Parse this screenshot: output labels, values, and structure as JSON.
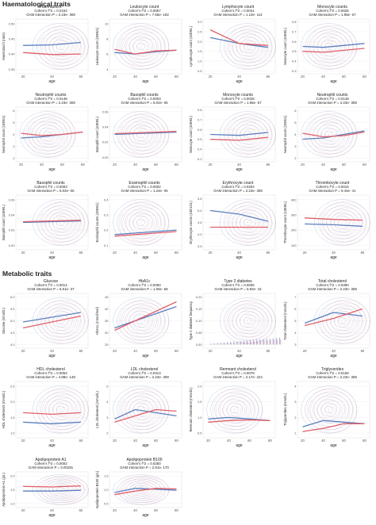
{
  "sections": {
    "haematological": "Haematological traits",
    "metabolic": "Metabolic traits"
  },
  "colors": {
    "blue": "#5b7fbf",
    "red": "#e0606a",
    "contour_blue": "#8aa2d4",
    "contour_red": "#e8a0aa",
    "axis": "#444444"
  },
  "chart_data": [
    {
      "type": "line",
      "title": "Haematocrit",
      "stat1": "Cohen's f^2 = 0.0163",
      "stat2": "GAM interaction P = 2.23e- 308",
      "ylabel": "Haematocrit (ratio)",
      "xlabel": "age",
      "xticks": [
        "20",
        "40",
        "60"
      ],
      "yticks": [
        "0.35",
        "0.40",
        "0.45",
        "0.50"
      ],
      "x": [
        20,
        40,
        60
      ],
      "series": [
        {
          "name": "",
          "color": "blue",
          "values": [
            0.428,
            0.43,
            0.438
          ]
        },
        {
          "name": "",
          "color": "red",
          "values": [
            0.405,
            0.398,
            0.4
          ]
        }
      ]
    },
    {
      "type": "line",
      "title": "Leukocyte count",
      "stat1": "Cohen's f^2 = 0.0067",
      "stat2": "GAM interaction P = 7.55e- 192",
      "ylabel": "Leukocyte count (10E9/L)",
      "xlabel": "age",
      "xticks": [
        "20",
        "40",
        "60",
        "80"
      ],
      "yticks": [
        "4",
        "6",
        "8",
        "10"
      ],
      "x": [
        20,
        40,
        60,
        80
      ],
      "series": [
        {
          "name": "",
          "color": "blue",
          "values": [
            6.2,
            6.0,
            6.3,
            6.5
          ]
        },
        {
          "name": "",
          "color": "red",
          "values": [
            6.6,
            6.0,
            6.4,
            6.5
          ]
        }
      ]
    },
    {
      "type": "line",
      "title": "Lymphocyte count",
      "stat1": "Cohen's f^2 = 0.0041",
      "stat2": "GAM interaction P = 1.13e- 114",
      "ylabel": "Lymphocyte count (10E9/L)",
      "xlabel": "age",
      "xticks": [
        "20",
        "40",
        "60"
      ],
      "yticks": [
        "0.5",
        "1.0",
        "1.5",
        "2.0",
        "2.5",
        "3.0"
      ],
      "x": [
        20,
        40,
        60
      ],
      "series": [
        {
          "name": "",
          "color": "blue",
          "values": [
            2.2,
            1.9,
            1.7
          ]
        },
        {
          "name": "",
          "color": "red",
          "values": [
            2.6,
            1.9,
            1.8
          ]
        }
      ]
    },
    {
      "type": "line",
      "title": "Monocyte counts",
      "stat1": "Cohen's f^2 = 0.0025",
      "stat2": "GAM interaction P = 1.95e- 67",
      "ylabel": "Monocyte count (10E9/L)",
      "xlabel": "age",
      "xticks": [
        "20",
        "40",
        "60",
        "80"
      ],
      "yticks": [
        "0.3",
        "0.4",
        "0.5",
        "0.6",
        "0.7",
        "0.8"
      ],
      "x": [
        20,
        40,
        60,
        80
      ],
      "series": [
        {
          "name": "",
          "color": "blue",
          "values": [
            0.55,
            0.54,
            0.56,
            0.58
          ]
        },
        {
          "name": "",
          "color": "red",
          "values": [
            0.5,
            0.49,
            0.51,
            0.53
          ]
        }
      ]
    },
    {
      "type": "line",
      "title": "Neutrophil counts",
      "stat1": "Cohen's f^2 = 0.0148",
      "stat2": "GAM interaction P = 2.23e- 308",
      "ylabel": "Neutrophil count (10E9/L)",
      "xlabel": "age",
      "xticks": [
        "20",
        "40",
        "60",
        "80"
      ],
      "yticks": [
        "2",
        "3",
        "4",
        "5",
        "6"
      ],
      "x": [
        20,
        40,
        60,
        80
      ],
      "series": [
        {
          "name": "",
          "color": "blue",
          "values": [
            3.7,
            3.8,
            4.0,
            4.2
          ]
        },
        {
          "name": "",
          "color": "red",
          "values": [
            4.1,
            3.9,
            4.0,
            4.2
          ]
        }
      ]
    },
    {
      "type": "line",
      "title": "Basophil counts",
      "stat1": "Cohen's f^2 = 0.0003",
      "stat2": "GAM interaction P = 6.02e- 06",
      "ylabel": "Basophil count (10E9/L)",
      "xlabel": "age",
      "xticks": [
        "20",
        "40",
        "60",
        "80"
      ],
      "yticks": [
        "0.00",
        "0.02",
        "0.04",
        "0.06"
      ],
      "x": [
        20,
        40,
        60,
        80
      ],
      "series": [
        {
          "name": "",
          "color": "blue",
          "values": [
            0.03,
            0.031,
            0.032,
            0.033
          ]
        },
        {
          "name": "",
          "color": "red",
          "values": [
            0.031,
            0.032,
            0.033,
            0.034
          ]
        }
      ]
    },
    {
      "type": "line",
      "title": "Monocyte counts",
      "stat1": "Cohen's f^2 = 0.0025",
      "stat2": "GAM interaction P = 1.95e- 67",
      "ylabel": "Monocyte count (10E9/L)",
      "xlabel": "age",
      "xticks": [
        "20",
        "40",
        "60"
      ],
      "yticks": [
        "0.3",
        "0.4",
        "0.5",
        "0.6",
        "0.7",
        "0.8"
      ],
      "x": [
        20,
        40,
        60
      ],
      "series": [
        {
          "name": "",
          "color": "blue",
          "values": [
            0.55,
            0.54,
            0.57
          ]
        },
        {
          "name": "",
          "color": "red",
          "values": [
            0.5,
            0.49,
            0.52
          ]
        }
      ]
    },
    {
      "type": "line",
      "title": "Neutrophil counts",
      "stat1": "Cohen's f^2 = 0.0148",
      "stat2": "GAM interaction P = 2.23e- 308",
      "ylabel": "Neutrophil count (10E9/L)",
      "xlabel": "age",
      "xticks": [
        "20",
        "40",
        "60",
        "80"
      ],
      "yticks": [
        "2",
        "3",
        "4",
        "5",
        "6"
      ],
      "x": [
        20,
        40,
        60,
        80
      ],
      "series": [
        {
          "name": "",
          "color": "blue",
          "values": [
            3.6,
            3.7,
            4.0,
            4.3
          ]
        },
        {
          "name": "",
          "color": "red",
          "values": [
            4.1,
            3.8,
            3.9,
            4.2
          ]
        }
      ]
    },
    {
      "type": "line",
      "title": "Basophil counts",
      "stat1": "Cohen's f^2 = 0.0003",
      "stat2": "GAM interaction P = 6.02e- 06",
      "ylabel": "Basophil count (10E9/L)",
      "xlabel": "age",
      "xticks": [
        "20",
        "40",
        "60"
      ],
      "yticks": [
        "0.00",
        "0.02",
        "0.04",
        "0.06"
      ],
      "x": [
        20,
        40,
        60
      ],
      "series": [
        {
          "name": "",
          "color": "blue",
          "values": [
            0.03,
            0.031,
            0.032
          ]
        },
        {
          "name": "",
          "color": "red",
          "values": [
            0.031,
            0.032,
            0.033
          ]
        }
      ]
    },
    {
      "type": "line",
      "title": "Eosinophil counts",
      "stat1": "Cohen's f^2 = 0.0002",
      "stat2": "GAM interaction P = 1.24e- 05",
      "ylabel": "Eosinophil counts (10E9/L)",
      "xlabel": "age",
      "xticks": [
        "20",
        "40",
        "60",
        "80"
      ],
      "yticks": [
        "0.1",
        "0.2",
        "0.3",
        "0.4"
      ],
      "x": [
        20,
        40,
        60,
        80
      ],
      "series": [
        {
          "name": "",
          "color": "blue",
          "values": [
            0.17,
            0.18,
            0.19,
            0.2
          ]
        },
        {
          "name": "",
          "color": "red",
          "values": [
            0.16,
            0.17,
            0.18,
            0.19
          ]
        }
      ]
    },
    {
      "type": "line",
      "title": "Erythrocyte count",
      "stat1": "Cohen's f^2 = 0.0204",
      "stat2": "GAM interaction P = 2.23e- 308",
      "ylabel": "Erythrocyte counts (10E12/L)",
      "xlabel": "age",
      "xticks": [
        "20",
        "40",
        "60"
      ],
      "yticks": [
        "3.5",
        "4.0",
        "4.5",
        "5.0",
        "5.5"
      ],
      "x": [
        20,
        40,
        60
      ],
      "series": [
        {
          "name": "",
          "color": "blue",
          "values": [
            5.0,
            4.85,
            4.55
          ]
        },
        {
          "name": "",
          "color": "red",
          "values": [
            4.3,
            4.3,
            4.3
          ]
        }
      ]
    },
    {
      "type": "line",
      "title": "Thrombocyte count",
      "stat1": "Cohen's f^2 = 0.0016",
      "stat2": "GAM interaction P = 9.44e- 41",
      "ylabel": "Thrombocyte count (10E9/L)",
      "xlabel": "age",
      "xticks": [
        "20",
        "40",
        "60"
      ],
      "yticks": [
        "100",
        "200",
        "300",
        "400"
      ],
      "x": [
        20,
        40,
        60
      ],
      "series": [
        {
          "name": "",
          "color": "blue",
          "values": [
            240,
            235,
            225
          ]
        },
        {
          "name": "",
          "color": "red",
          "values": [
            280,
            270,
            265
          ]
        }
      ]
    },
    {
      "type": "line",
      "title": "Glucose",
      "stat1": "Cohen's f^2 = 0.0014",
      "stat2": "GAM interaction P = 6.51e- 37",
      "ylabel": "Glucose (mmol/L)",
      "xlabel": "age",
      "xticks": [
        "20",
        "40",
        "60"
      ],
      "yticks": [
        "4.0",
        "4.5",
        "5.0",
        "5.5",
        "6.0"
      ],
      "x": [
        20,
        40,
        60
      ],
      "series": [
        {
          "name": "",
          "color": "blue",
          "values": [
            4.95,
            5.15,
            5.35
          ]
        },
        {
          "name": "",
          "color": "red",
          "values": [
            4.7,
            4.95,
            5.2
          ]
        }
      ]
    },
    {
      "type": "line",
      "title": "HbA1c",
      "stat1": "Cohen's f^2 = 0.0050",
      "stat2": "GAM interaction P = 1.06e- 68",
      "ylabel": "HbA1c (mmol/mol)",
      "xlabel": "age",
      "xticks": [
        "20",
        "40",
        "60",
        "80"
      ],
      "yticks": [
        "25",
        "30",
        "35",
        "40",
        "45"
      ],
      "x": [
        20,
        40,
        60,
        80
      ],
      "series": [
        {
          "name": "",
          "color": "blue",
          "values": [
            32,
            35,
            38,
            41
          ]
        },
        {
          "name": "",
          "color": "red",
          "values": [
            31,
            35,
            39,
            43
          ]
        }
      ]
    },
    {
      "type": "bar",
      "title": "Type 2 diabetes",
      "stat1": "Cohen's f^2 = 0.0006",
      "stat2": "GAM interaction P = 6.92e- 15",
      "ylabel": "Type 2 diabetes frequency",
      "xlabel": "age",
      "xticks": [
        "20",
        "40",
        "60"
      ],
      "yticks": [
        "0.00",
        "0.05",
        "0.10",
        "0.15",
        "0.20"
      ],
      "x": [
        20,
        40,
        60
      ],
      "series": [
        {
          "name": "",
          "color": "blue",
          "values": [
            0.004,
            0.012,
            0.03
          ]
        },
        {
          "name": "",
          "color": "red",
          "values": [
            0.003,
            0.01,
            0.022
          ]
        }
      ]
    },
    {
      "type": "line",
      "title": "Total cholesterol",
      "stat1": "Cohen's f^2 = 0.0390",
      "stat2": "GAM interaction P = 2.23e- 308",
      "ylabel": "Total cholesterol (mmol/L)",
      "xlabel": "age",
      "xticks": [
        "20",
        "40",
        "60"
      ],
      "yticks": [
        "3",
        "4",
        "5",
        "6",
        "7"
      ],
      "x": [
        20,
        40,
        60
      ],
      "series": [
        {
          "name": "",
          "color": "blue",
          "values": [
            4.8,
            5.7,
            5.4
          ]
        },
        {
          "name": "",
          "color": "red",
          "values": [
            4.6,
            5.2,
            6.0
          ]
        }
      ]
    },
    {
      "type": "line",
      "title": "HDL cholesterol",
      "stat1": "Cohen's f^2 = 0.0053",
      "stat2": "GAM interaction P = 4.88e- 148",
      "ylabel": "HDL cholesterol (mmol/L)",
      "xlabel": "age",
      "xticks": [
        "20",
        "40",
        "60"
      ],
      "yticks": [
        "1.0",
        "1.5",
        "2.0",
        "2.5"
      ],
      "x": [
        20,
        40,
        60
      ],
      "series": [
        {
          "name": "",
          "color": "blue",
          "values": [
            1.35,
            1.3,
            1.35
          ]
        },
        {
          "name": "",
          "color": "red",
          "values": [
            1.65,
            1.6,
            1.65
          ]
        }
      ]
    },
    {
      "type": "line",
      "title": "LDL cholesterol",
      "stat1": "Cohen's f^2 = 0.0313",
      "stat2": "GAM interaction P = 2.23e- 308",
      "ylabel": "LDL cholesterol (mmol/L)",
      "xlabel": "age",
      "xticks": [
        "20",
        "40",
        "60",
        "80"
      ],
      "yticks": [
        "2",
        "3",
        "4",
        "5"
      ],
      "x": [
        20,
        40,
        60,
        80
      ],
      "series": [
        {
          "name": "",
          "color": "blue",
          "values": [
            2.9,
            3.5,
            3.3,
            3.1
          ]
        },
        {
          "name": "",
          "color": "red",
          "values": [
            2.7,
            3.1,
            3.5,
            3.4
          ]
        }
      ]
    },
    {
      "type": "line",
      "title": "Remnant cholesterol",
      "stat1": "Cohen's f^2 = 0.0078",
      "stat2": "GAM interaction P = 2.17e- 224",
      "ylabel": "Remnant cholesterol (mmol/L)",
      "xlabel": "age",
      "xticks": [
        "20",
        "40",
        "60",
        "80"
      ],
      "yticks": [
        "0.5",
        "1.0",
        "1.5",
        "2.0"
      ],
      "x": [
        20,
        40,
        60,
        80
      ],
      "series": [
        {
          "name": "",
          "color": "blue",
          "values": [
            0.95,
            1.0,
            0.95,
            0.9
          ]
        },
        {
          "name": "",
          "color": "red",
          "values": [
            0.85,
            0.9,
            0.92,
            0.9
          ]
        }
      ]
    },
    {
      "type": "line",
      "title": "Triglycerides",
      "stat1": "Cohen's f^2 = 0.0160",
      "stat2": "GAM interaction P = 2.23e- 308",
      "ylabel": "Triglycerides (mmol/L)",
      "xlabel": "age",
      "xticks": [
        "20",
        "40",
        "60",
        "80"
      ],
      "yticks": [
        "1",
        "2",
        "3",
        "4"
      ],
      "x": [
        20,
        40,
        60,
        80
      ],
      "series": [
        {
          "name": "",
          "color": "blue",
          "values": [
            1.4,
            1.8,
            1.7,
            1.6
          ]
        },
        {
          "name": "",
          "color": "red",
          "values": [
            1.1,
            1.3,
            1.6,
            1.6
          ]
        }
      ]
    },
    {
      "type": "line",
      "title": "Apolipoprotein A1",
      "stat1": "Cohen's f^2 = 0.0002",
      "stat2": "GAM interaction P = 0.00281",
      "ylabel": "Apolipoprotein A1 (g/L)",
      "xlabel": "age",
      "xticks": [
        "20",
        "40",
        "60"
      ],
      "yticks": [
        "1.0",
        "1.5",
        "2.0"
      ],
      "x": [
        20,
        40,
        60
      ],
      "series": [
        {
          "name": "",
          "color": "blue",
          "values": [
            1.45,
            1.45,
            1.48
          ]
        },
        {
          "name": "",
          "color": "red",
          "values": [
            1.62,
            1.6,
            1.64
          ]
        }
      ]
    },
    {
      "type": "line",
      "title": "Apolipoprotein B100",
      "stat1": "Cohen's f^2 = 0.0250",
      "stat2": "GAM interaction P = 2.91e- 170",
      "ylabel": "Apolipoprotein B100 (g/L)",
      "xlabel": "age",
      "xticks": [
        "20",
        "40",
        "60",
        "80"
      ],
      "yticks": [
        "0.5",
        "1.0",
        "1.5"
      ],
      "x": [
        20,
        40,
        60,
        80
      ],
      "series": [
        {
          "name": "",
          "color": "blue",
          "values": [
            0.9,
            1.05,
            1.02,
            0.98
          ]
        },
        {
          "name": "",
          "color": "red",
          "values": [
            0.82,
            0.95,
            1.05,
            1.03
          ]
        }
      ]
    }
  ]
}
